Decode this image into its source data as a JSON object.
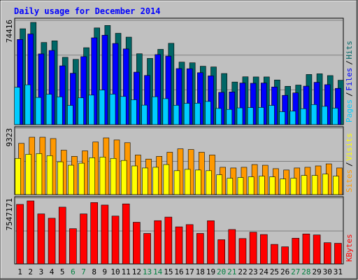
{
  "title": "Daily usage for December 2014",
  "colors": {
    "background": "#c0c0c0",
    "title": "#0000ff",
    "hits": "#006666",
    "files": "#0000ff",
    "pages": "#00ccff",
    "visits": "#ffff00",
    "sites": "#ff9900",
    "kbytes": "#ff0000",
    "weekend_day_label": "#008040"
  },
  "chart_data": [
    {
      "type": "bar",
      "panel": "hits-files-pages",
      "ymax_label": "74416",
      "ymax": 74416,
      "legend": [
        {
          "text": "Pages",
          "color": "#00ccff"
        },
        {
          "text": "Files",
          "color": "#0000ff"
        },
        {
          "text": "Hits",
          "color": "#006666"
        }
      ],
      "categories": [
        "1",
        "2",
        "3",
        "4",
        "5",
        "6",
        "7",
        "8",
        "9",
        "10",
        "11",
        "12",
        "13",
        "14",
        "15",
        "16",
        "17",
        "18",
        "19",
        "20",
        "21",
        "22",
        "23",
        "24",
        "25",
        "26",
        "27",
        "28",
        "29",
        "30",
        "31"
      ],
      "series": [
        {
          "name": "Hits",
          "values": [
            69800,
            74416,
            59800,
            61000,
            49000,
            47500,
            56000,
            70400,
            72200,
            66500,
            63700,
            51600,
            48200,
            54800,
            59200,
            45500,
            45000,
            42500,
            42000,
            37200,
            31000,
            34800,
            34700,
            34700,
            32500,
            27900,
            28800,
            36500,
            37000,
            35700,
            32300
          ]
        },
        {
          "name": "Files",
          "values": [
            62000,
            66000,
            51500,
            54000,
            42800,
            37400,
            49500,
            63200,
            65100,
            59100,
            55100,
            38200,
            35800,
            51000,
            49900,
            40800,
            40700,
            37800,
            35500,
            23500,
            23800,
            30300,
            30100,
            30300,
            27400,
            21300,
            23100,
            28000,
            30800,
            29100,
            26400
          ]
        },
        {
          "name": "Pages",
          "values": [
            27200,
            29000,
            19800,
            22100,
            20200,
            14000,
            19500,
            21500,
            25200,
            22200,
            20500,
            18100,
            14200,
            20300,
            18900,
            14100,
            15500,
            15600,
            16900,
            11800,
            11100,
            12200,
            12400,
            12500,
            14000,
            9400,
            9800,
            11600,
            14600,
            13300,
            12000
          ]
        }
      ]
    },
    {
      "type": "bar",
      "panel": "visits-sites",
      "ymax_label": "9323",
      "ymax": 9323,
      "legend": [
        {
          "text": "Sites",
          "color": "#ff9900"
        },
        {
          "text": "Visits",
          "color": "#ffff00"
        }
      ],
      "categories": [
        "1",
        "2",
        "3",
        "4",
        "5",
        "6",
        "7",
        "8",
        "9",
        "10",
        "11",
        "12",
        "13",
        "14",
        "15",
        "16",
        "17",
        "18",
        "19",
        "20",
        "21",
        "22",
        "23",
        "24",
        "25",
        "26",
        "27",
        "28",
        "29",
        "30",
        "31"
      ],
      "series": [
        {
          "name": "Visits",
          "values": [
            5300,
            5900,
            6000,
            5700,
            4800,
            4300,
            4600,
            5400,
            5500,
            5300,
            5000,
            4200,
            3900,
            4000,
            4400,
            3500,
            3700,
            3600,
            3500,
            2900,
            2400,
            2500,
            2600,
            2700,
            2600,
            2300,
            2400,
            2800,
            2800,
            3000,
            2700
          ]
        },
        {
          "name": "Sites",
          "values": [
            7500,
            8400,
            8400,
            8200,
            6500,
            5600,
            6400,
            7700,
            8300,
            8000,
            7600,
            5800,
            5200,
            5600,
            6200,
            6700,
            6600,
            6200,
            5800,
            4000,
            3900,
            4000,
            4400,
            4300,
            3800,
            3600,
            3900,
            4000,
            4200,
            4500,
            3900
          ]
        }
      ]
    },
    {
      "type": "bar",
      "panel": "kbytes",
      "ymax_label": "7547171",
      "ymax": 7547171,
      "legend": [
        {
          "text": "KBytes",
          "color": "#ff0000"
        }
      ],
      "categories": [
        "1",
        "2",
        "3",
        "4",
        "5",
        "6",
        "7",
        "8",
        "9",
        "10",
        "11",
        "12",
        "13",
        "14",
        "15",
        "16",
        "17",
        "18",
        "19",
        "20",
        "21",
        "22",
        "23",
        "24",
        "25",
        "26",
        "27",
        "28",
        "29",
        "30",
        "31"
      ],
      "series": [
        {
          "name": "KBytes",
          "values": [
            7130000,
            7547171,
            5990000,
            5470000,
            6800000,
            4220000,
            5990000,
            7350000,
            7050000,
            5730000,
            7190000,
            4990000,
            3650000,
            5180000,
            5610000,
            4440000,
            4710000,
            3650000,
            5170000,
            2900000,
            4120000,
            3040000,
            3800000,
            3520000,
            2340000,
            2050000,
            3080000,
            3590000,
            3470000,
            2540000,
            2470000
          ]
        }
      ]
    }
  ]
}
